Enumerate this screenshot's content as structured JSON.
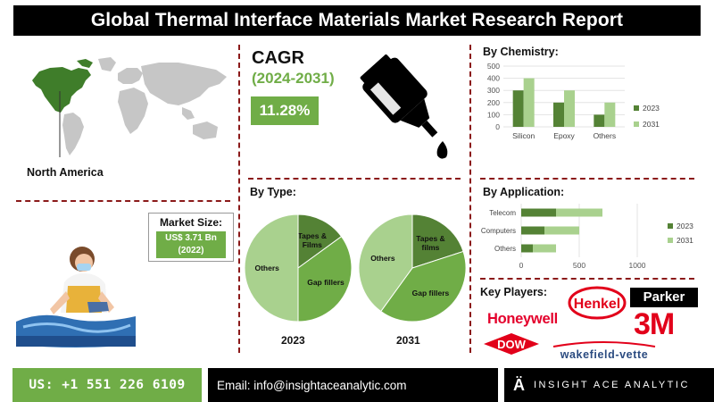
{
  "header": {
    "title": "Global Thermal Interface Materials Market Research Report"
  },
  "region": {
    "name": "North America"
  },
  "market_size": {
    "title": "Market Size:",
    "value": "US$ 3.71 Bn",
    "year": "(2022)"
  },
  "cagr": {
    "title": "CAGR",
    "period": "(2024-2031)",
    "value": "11.28%"
  },
  "sections": {
    "by_type": "By Type:",
    "by_chemistry": "By Chemistry:",
    "by_application": "By Application:",
    "key_players": "Key Players:"
  },
  "players": [
    "Henkel",
    "Parker",
    "Honeywell",
    "3M",
    "DOW",
    "wakefield-vette"
  ],
  "colors": {
    "dark_green": "#548235",
    "light_green": "#a9d18e",
    "mid_green": "#70ad47",
    "header_bg": "#000000",
    "divider": "#8b1a1a"
  },
  "footer": {
    "phone": "US: +1 551 226 6109",
    "email": "Email: info@insightaceanalytic.com",
    "brand": "INSIGHT ACE ANALYTIC"
  },
  "chart_data": [
    {
      "id": "chemistry",
      "type": "bar",
      "categories": [
        "Silicon",
        "Epoxy",
        "Others"
      ],
      "series": [
        {
          "name": "2023",
          "values": [
            300,
            200,
            100
          ]
        },
        {
          "name": "2031",
          "values": [
            400,
            300,
            200
          ]
        }
      ],
      "ylim": [
        0,
        500
      ],
      "yticks": [
        0,
        100,
        200,
        300,
        400,
        500
      ],
      "legend": "right"
    },
    {
      "id": "application",
      "type": "bar",
      "orientation": "horizontal",
      "categories": [
        "Telecom",
        "Computers",
        "Others"
      ],
      "series": [
        {
          "name": "2023",
          "values": [
            300,
            200,
            100
          ]
        },
        {
          "name": "2031",
          "values": [
            700,
            500,
            300
          ]
        }
      ],
      "xlim": [
        0,
        1000
      ],
      "xticks": [
        0,
        500,
        1000
      ],
      "legend": "right"
    },
    {
      "id": "type-2023",
      "type": "pie",
      "title": "2023",
      "labels": [
        "Tapes & Films",
        "Gap fillers",
        "Others"
      ],
      "values": [
        15,
        35,
        50
      ]
    },
    {
      "id": "type-2031",
      "type": "pie",
      "title": "2031",
      "labels": [
        "Tapes & films",
        "Gap fillers",
        "Others"
      ],
      "values": [
        20,
        40,
        40
      ]
    }
  ]
}
